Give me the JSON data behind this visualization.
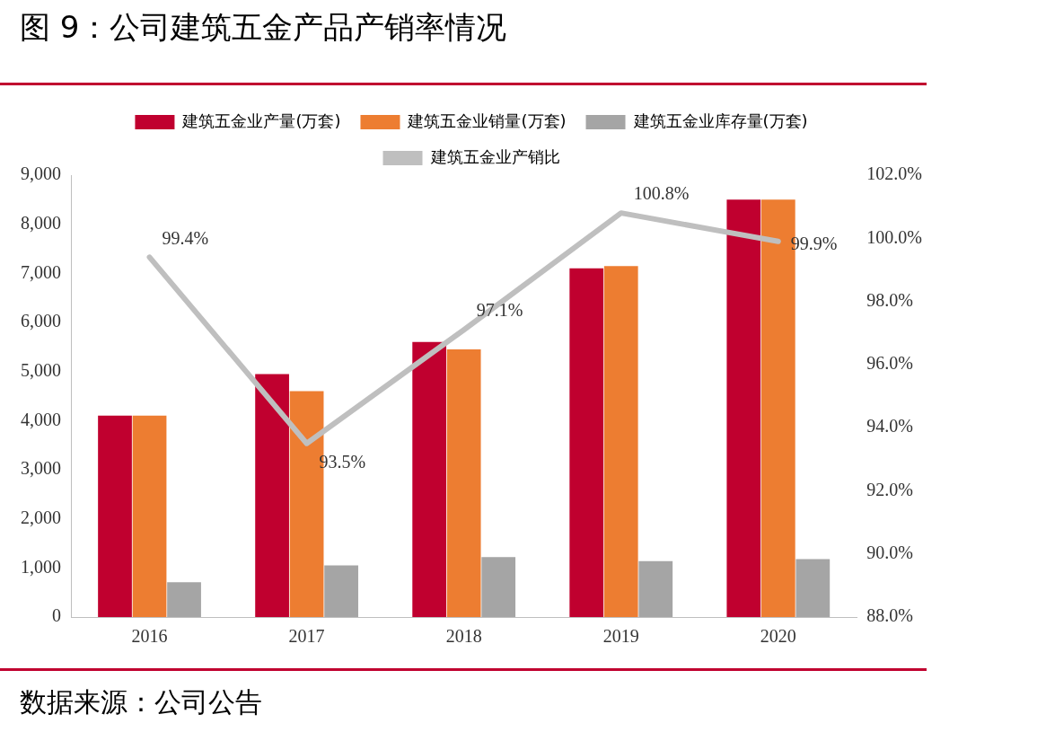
{
  "chart_data": {
    "type": "bar",
    "title": "图 9：公司建筑五金产品产销率情况",
    "annotations": [
      "数据来源：公司公告"
    ],
    "categories": [
      "2016",
      "2017",
      "2018",
      "2019",
      "2020"
    ],
    "series": [
      {
        "name": "建筑五金业产量(万套)",
        "color": "#c0002f",
        "values": [
          4100,
          4950,
          5600,
          7100,
          8500
        ]
      },
      {
        "name": "建筑五金业销量(万套)",
        "color": "#ed7d31",
        "values": [
          4100,
          4600,
          5450,
          7150,
          8500
        ]
      },
      {
        "name": "建筑五金业库存量(万套)",
        "color": "#a5a5a5",
        "values": [
          710,
          1050,
          1220,
          1140,
          1180
        ]
      },
      {
        "name": "建筑五金业产销比",
        "type": "line",
        "axis": "y2",
        "color": "#bfbfbf",
        "values": [
          99.4,
          93.5,
          97.1,
          100.8,
          99.9
        ],
        "value_labels": [
          "99.4%",
          "93.5%",
          "97.1%",
          "100.8%",
          "99.9%"
        ]
      }
    ],
    "ylim": [
      0,
      9000
    ],
    "yticks": [
      0,
      {
        "value": 1000,
        "label": "1,000"
      },
      {
        "value": 2000,
        "label": "2,000"
      },
      {
        "value": 3000,
        "label": "3,000"
      },
      {
        "value": 4000,
        "label": "4,000"
      },
      {
        "value": 5000,
        "label": "5,000"
      },
      {
        "value": 6000,
        "label": "6,000"
      },
      {
        "value": 7000,
        "label": "7,000"
      },
      {
        "value": 8000,
        "label": "8,000"
      },
      {
        "value": 9000,
        "label": "9,000"
      }
    ],
    "y2lim": [
      88,
      102
    ],
    "y2ticks": [
      {
        "value": 88,
        "label": "88.0%"
      },
      {
        "value": 90,
        "label": "90.0%"
      },
      {
        "value": 92,
        "label": "92.0%"
      },
      {
        "value": 94,
        "label": "94.0%"
      },
      {
        "value": 96,
        "label": "96.0%"
      },
      {
        "value": 98,
        "label": "98.0%"
      },
      {
        "value": 100,
        "label": "100.0%"
      },
      {
        "value": 102,
        "label": "102.0%"
      }
    ],
    "grid": false,
    "legend": "top",
    "marker": "none",
    "line_style": "solid"
  }
}
